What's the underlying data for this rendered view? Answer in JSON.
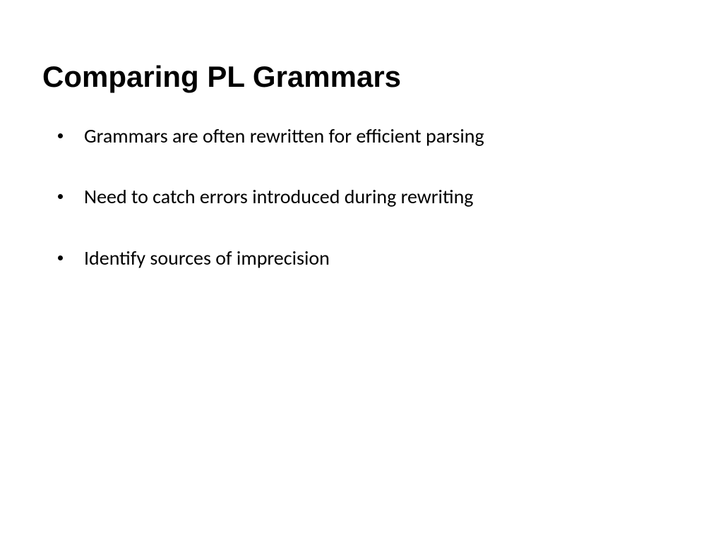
{
  "slide": {
    "title": "Comparing PL Grammars",
    "title_fontsize": 42,
    "title_fontweight": 700,
    "title_color": "#000000",
    "background_color": "#ffffff",
    "bullets": [
      {
        "text": "Grammars are often rewritten for efficient parsing"
      },
      {
        "text": "Need to catch errors introduced during rewriting"
      },
      {
        "text": "Identify sources of imprecision"
      }
    ],
    "bullet_fontsize": 28,
    "bullet_color": "#000000",
    "bullet_marker_color": "#000000",
    "bullet_marker_size": 7,
    "bullet_spacing": 50
  }
}
